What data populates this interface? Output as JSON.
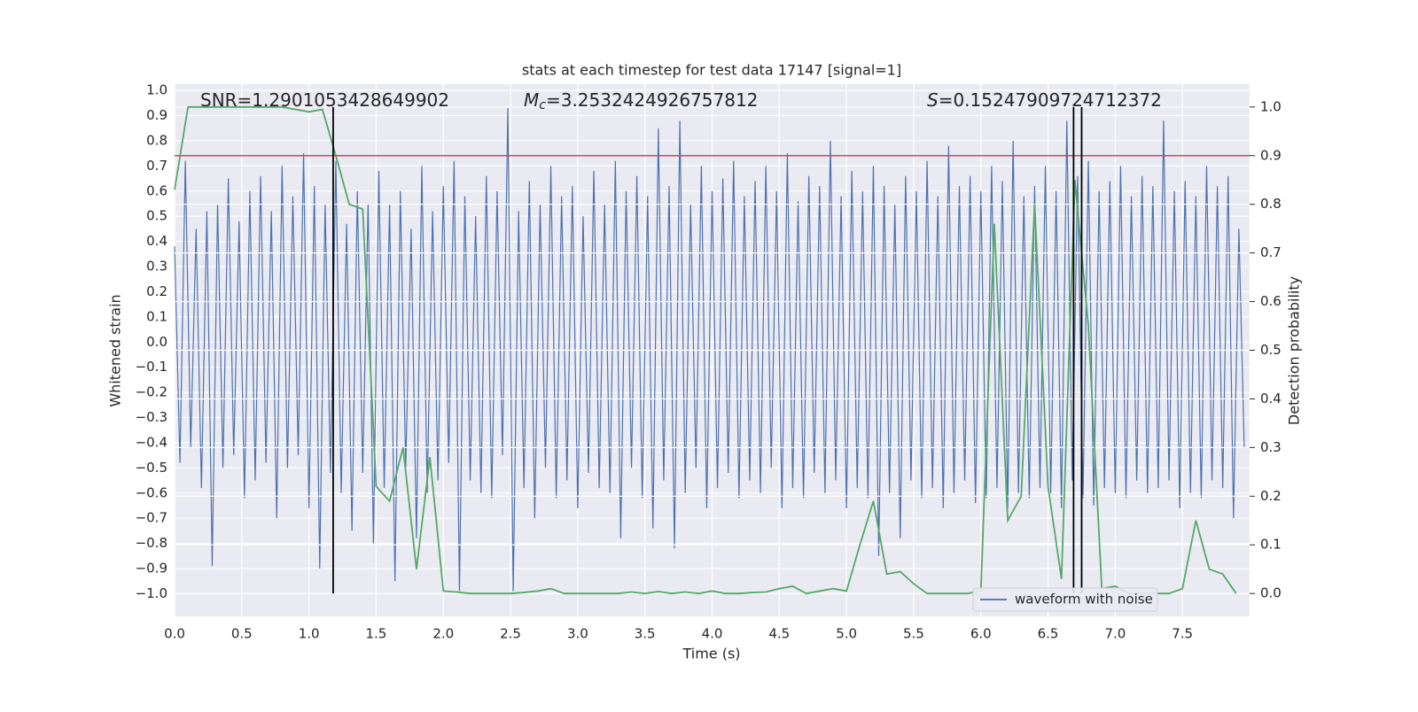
{
  "chart_data": {
    "type": "line",
    "title": "stats at each timestep for test data 17147 [signal=1]",
    "xlabel": "Time (s)",
    "ylabel": "Whitened strain",
    "y2label": "Detection probability",
    "xlim": [
      0,
      8.0
    ],
    "ylim": [
      -1.09,
      1.025
    ],
    "y2lim": [
      -0.047,
      1.047
    ],
    "xticks": [
      {
        "value": 0,
        "label": "0.0"
      },
      0.5,
      {
        "value": 1,
        "label": "1.0"
      },
      1.5,
      {
        "value": 2,
        "label": "2.0"
      },
      2.5,
      {
        "value": 3,
        "label": "3.0"
      },
      3.5,
      {
        "value": 4,
        "label": "4.0"
      },
      4.5,
      {
        "value": 5,
        "label": "5.0"
      },
      5.5,
      {
        "value": 6,
        "label": "6.0"
      },
      6.5,
      {
        "value": 7,
        "label": "7.0"
      },
      7.5
    ],
    "yticks": [
      {
        "value": -1.0,
        "label": "−1.0"
      },
      {
        "value": -0.9,
        "label": "−0.9"
      },
      {
        "value": -0.8,
        "label": "−0.8"
      },
      {
        "value": -0.7,
        "label": "−0.7"
      },
      {
        "value": -0.6,
        "label": "−0.6"
      },
      {
        "value": -0.5,
        "label": "−0.5"
      },
      {
        "value": -0.4,
        "label": "−0.4"
      },
      {
        "value": -0.3,
        "label": "−0.3"
      },
      {
        "value": -0.2,
        "label": "−0.2"
      },
      {
        "value": -0.1,
        "label": "−0.1"
      },
      {
        "value": 0,
        "label": "0.0"
      },
      0.1,
      0.2,
      0.3,
      0.4,
      0.5,
      0.6,
      0.7,
      0.8,
      0.9,
      {
        "value": 1,
        "label": "1.0"
      }
    ],
    "y2ticks": [
      {
        "value": 0,
        "label": "0.0"
      },
      0.1,
      0.2,
      0.3,
      0.4,
      0.5,
      0.6,
      0.7,
      0.8,
      0.9,
      {
        "value": 1,
        "label": "1.0"
      }
    ],
    "grid": true,
    "legend": "lower right",
    "annotations": [
      {
        "text": "SNR=1.2901053428649902"
      },
      {
        "symbol": "M",
        "subscript": "c",
        "text": "=3.2532424926757812"
      },
      {
        "symbol": "S",
        "text": "=0.15247909724712372"
      }
    ],
    "threshold": 0.9,
    "threshold_color": "#c44e52",
    "vlines": [
      1.18,
      6.69,
      6.75
    ],
    "vline_span": [
      0,
      1
    ],
    "series": [
      {
        "name": "waveform with noise",
        "color": "#4c72b0",
        "x": [
          0,
          0.04,
          0.08,
          0.12,
          0.16,
          0.2,
          0.24,
          0.28,
          0.32,
          0.36,
          0.4,
          0.44,
          0.48,
          0.52,
          0.56,
          0.6,
          0.64,
          0.68,
          0.72,
          0.76,
          0.8,
          0.84,
          0.88,
          0.92,
          0.96,
          1.0,
          1.04,
          1.08,
          1.12,
          1.16,
          1.2,
          1.24,
          1.28,
          1.32,
          1.36,
          1.4,
          1.44,
          1.48,
          1.52,
          1.56,
          1.6,
          1.64,
          1.68,
          1.72,
          1.76,
          1.8,
          1.84,
          1.88,
          1.92,
          1.96,
          2.0,
          2.04,
          2.08,
          2.12,
          2.16,
          2.2,
          2.24,
          2.28,
          2.32,
          2.36,
          2.4,
          2.44,
          2.48,
          2.52,
          2.56,
          2.6,
          2.64,
          2.68,
          2.72,
          2.76,
          2.8,
          2.84,
          2.88,
          2.92,
          2.96,
          3.0,
          3.04,
          3.08,
          3.12,
          3.16,
          3.2,
          3.24,
          3.28,
          3.32,
          3.36,
          3.4,
          3.44,
          3.48,
          3.52,
          3.56,
          3.6,
          3.64,
          3.68,
          3.72,
          3.76,
          3.8,
          3.84,
          3.88,
          3.92,
          3.96,
          4.0,
          4.04,
          4.08,
          4.12,
          4.16,
          4.2,
          4.24,
          4.28,
          4.32,
          4.36,
          4.4,
          4.44,
          4.48,
          4.52,
          4.56,
          4.6,
          4.64,
          4.68,
          4.72,
          4.76,
          4.8,
          4.84,
          4.88,
          4.92,
          4.96,
          5.0,
          5.04,
          5.08,
          5.12,
          5.16,
          5.2,
          5.24,
          5.28,
          5.32,
          5.36,
          5.4,
          5.44,
          5.48,
          5.52,
          5.56,
          5.6,
          5.64,
          5.68,
          5.72,
          5.76,
          5.8,
          5.84,
          5.88,
          5.92,
          5.96,
          6.0,
          6.04,
          6.08,
          6.12,
          6.16,
          6.2,
          6.24,
          6.28,
          6.32,
          6.36,
          6.4,
          6.44,
          6.48,
          6.52,
          6.56,
          6.6,
          6.64,
          6.68,
          6.72,
          6.76,
          6.8,
          6.84,
          6.88,
          6.92,
          6.96,
          7.0,
          7.04,
          7.08,
          7.12,
          7.16,
          7.2,
          7.24,
          7.28,
          7.32,
          7.36,
          7.4,
          7.44,
          7.48,
          7.52,
          7.56,
          7.6,
          7.64,
          7.68,
          7.72,
          7.76,
          7.8,
          7.84,
          7.88,
          7.92,
          7.96
        ],
        "values": [
          0.38,
          -0.48,
          0.72,
          -0.42,
          0.45,
          -0.58,
          0.52,
          -0.89,
          0.55,
          -0.5,
          0.65,
          -0.45,
          0.48,
          -0.62,
          0.6,
          -0.55,
          0.66,
          -0.48,
          0.52,
          -0.7,
          0.7,
          -0.5,
          0.58,
          -0.45,
          0.75,
          -0.66,
          0.62,
          -0.9,
          0.55,
          -0.52,
          0.72,
          -0.6,
          0.47,
          -0.75,
          0.6,
          -0.52,
          0.55,
          -0.8,
          0.68,
          -0.58,
          0.55,
          -0.95,
          0.6,
          -0.5,
          0.45,
          -0.78,
          0.7,
          -0.6,
          0.52,
          -0.55,
          0.62,
          -0.48,
          0.72,
          -0.99,
          0.58,
          -0.55,
          0.5,
          -0.6,
          0.66,
          -0.62,
          0.6,
          -0.45,
          0.93,
          -0.99,
          0.52,
          -0.58,
          0.64,
          -0.7,
          0.55,
          -0.5,
          0.7,
          -0.62,
          0.58,
          -0.55,
          0.62,
          -0.66,
          0.5,
          -0.52,
          0.68,
          -0.58,
          0.55,
          -0.6,
          0.72,
          -0.78,
          0.6,
          -0.5,
          0.66,
          -0.62,
          0.58,
          -0.74,
          0.85,
          -0.55,
          0.62,
          -0.82,
          0.88,
          -0.6,
          0.55,
          -0.5,
          0.7,
          -0.66,
          0.6,
          -0.58,
          0.65,
          -0.52,
          0.72,
          -0.62,
          0.58,
          -0.55,
          0.64,
          -0.6,
          0.7,
          -0.5,
          0.6,
          -0.66,
          0.75,
          -0.58,
          0.56,
          -0.62,
          0.66,
          -0.52,
          0.62,
          -0.6,
          0.8,
          -0.55,
          0.58,
          -0.66,
          0.68,
          -0.58,
          0.6,
          -0.62,
          0.7,
          -0.85,
          0.62,
          -0.6,
          0.55,
          -0.78,
          0.66,
          -0.55,
          0.6,
          -0.62,
          0.72,
          -0.58,
          0.58,
          -0.66,
          0.78,
          -0.6,
          0.62,
          -0.55,
          0.66,
          -0.64,
          0.6,
          -0.62,
          0.7,
          -0.58,
          0.64,
          -0.66,
          0.8,
          -0.6,
          0.58,
          -0.62,
          0.62,
          -0.58,
          0.7,
          -0.6,
          0.6,
          -0.66,
          0.88,
          -0.55,
          0.66,
          -0.62,
          0.72,
          -0.65,
          0.6,
          -0.58,
          0.64,
          -0.6,
          0.7,
          -0.62,
          0.58,
          -0.55,
          0.66,
          -0.6,
          0.62,
          -0.58,
          0.88,
          -0.55,
          0.6,
          -0.66,
          0.64,
          -0.6,
          0.58,
          -0.62,
          0.7,
          -0.55,
          0.62,
          -0.58,
          0.66,
          -0.7,
          0.45,
          -0.42
        ]
      },
      {
        "color": "#55a868",
        "axis": "y2",
        "x": [
          0,
          0.1,
          0.2,
          0.3,
          0.4,
          0.5,
          0.6,
          0.7,
          0.8,
          0.9,
          1.0,
          1.1,
          1.2,
          1.3,
          1.4,
          1.5,
          1.6,
          1.7,
          1.8,
          1.9,
          2.0,
          2.1,
          2.2,
          2.3,
          2.4,
          2.5,
          2.6,
          2.7,
          2.8,
          2.9,
          3.0,
          3.1,
          3.2,
          3.3,
          3.4,
          3.5,
          3.6,
          3.7,
          3.8,
          3.9,
          4.0,
          4.1,
          4.2,
          4.3,
          4.4,
          4.5,
          4.6,
          4.7,
          4.8,
          4.9,
          5.0,
          5.1,
          5.2,
          5.3,
          5.4,
          5.5,
          5.6,
          5.7,
          5.8,
          5.9,
          6.0,
          6.1,
          6.2,
          6.3,
          6.4,
          6.5,
          6.6,
          6.7,
          6.8,
          6.9,
          7.0,
          7.1,
          7.2,
          7.3,
          7.4,
          7.5,
          7.6,
          7.7,
          7.8,
          7.9
        ],
        "values": [
          0.83,
          1.0,
          1.0,
          1.0,
          1.0,
          1.0,
          1.0,
          1.0,
          1.0,
          0.995,
          0.99,
          0.995,
          0.9,
          0.8,
          0.79,
          0.22,
          0.19,
          0.3,
          0.05,
          0.28,
          0.005,
          0.003,
          0.0,
          0.0,
          0.0,
          0.0,
          0.002,
          0.005,
          0.01,
          0.0,
          0.0,
          0.0,
          0.0,
          0.0,
          0.003,
          0.0,
          0.004,
          0.0,
          0.003,
          0.0,
          0.005,
          0.0,
          0.0,
          0.002,
          0.003,
          0.01,
          0.015,
          0.0,
          0.005,
          0.01,
          0.005,
          0.1,
          0.19,
          0.04,
          0.045,
          0.02,
          0.0,
          0.0,
          0.0,
          0.0,
          0.005,
          0.76,
          0.15,
          0.2,
          0.8,
          0.22,
          0.03,
          0.85,
          0.55,
          0.01,
          0.015,
          0.0,
          0.0,
          0.0,
          0.0,
          0.01,
          0.15,
          0.05,
          0.04,
          0.0
        ]
      }
    ]
  }
}
